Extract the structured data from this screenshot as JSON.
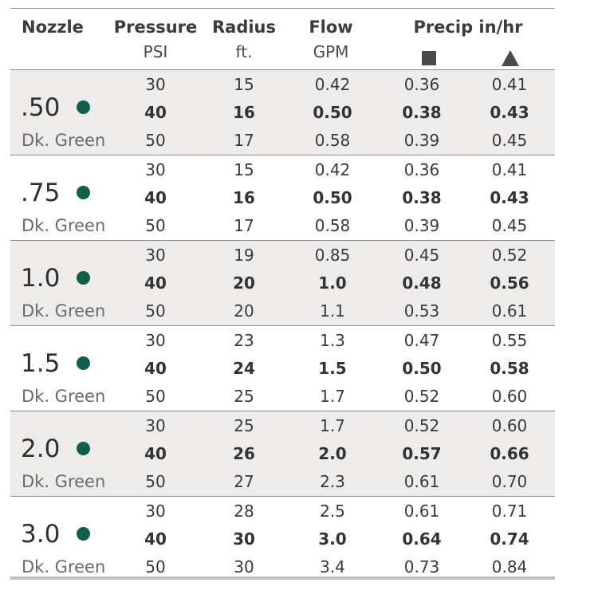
{
  "header": {
    "nozzle": "Nozzle",
    "pressure": "Pressure",
    "pressure_unit": "PSI",
    "radius": "Radius",
    "radius_unit": "ft.",
    "flow": "Flow",
    "flow_unit": "GPM",
    "precip": "Precip in/hr",
    "precip_square_icon": "square-icon",
    "precip_triangle_icon": "triangle-icon"
  },
  "colors": {
    "dot": "#0f5f4c",
    "shade": "#edecea"
  },
  "nozzles": [
    {
      "size": ".50",
      "color_name": "Dk. Green",
      "rows": [
        {
          "psi": "30",
          "radius": "15",
          "flow": "0.42",
          "sq": "0.36",
          "tri": "0.41"
        },
        {
          "psi": "40",
          "radius": "16",
          "flow": "0.50",
          "sq": "0.38",
          "tri": "0.43"
        },
        {
          "psi": "50",
          "radius": "17",
          "flow": "0.58",
          "sq": "0.39",
          "tri": "0.45"
        }
      ]
    },
    {
      "size": ".75",
      "color_name": "Dk. Green",
      "rows": [
        {
          "psi": "30",
          "radius": "15",
          "flow": "0.42",
          "sq": "0.36",
          "tri": "0.41"
        },
        {
          "psi": "40",
          "radius": "16",
          "flow": "0.50",
          "sq": "0.38",
          "tri": "0.43"
        },
        {
          "psi": "50",
          "radius": "17",
          "flow": "0.58",
          "sq": "0.39",
          "tri": "0.45"
        }
      ]
    },
    {
      "size": "1.0",
      "color_name": "Dk. Green",
      "rows": [
        {
          "psi": "30",
          "radius": "19",
          "flow": "0.85",
          "sq": "0.45",
          "tri": "0.52"
        },
        {
          "psi": "40",
          "radius": "20",
          "flow": "1.0",
          "sq": "0.48",
          "tri": "0.56"
        },
        {
          "psi": "50",
          "radius": "20",
          "flow": "1.1",
          "sq": "0.53",
          "tri": "0.61"
        }
      ]
    },
    {
      "size": "1.5",
      "color_name": "Dk. Green",
      "rows": [
        {
          "psi": "30",
          "radius": "23",
          "flow": "1.3",
          "sq": "0.47",
          "tri": "0.55"
        },
        {
          "psi": "40",
          "radius": "24",
          "flow": "1.5",
          "sq": "0.50",
          "tri": "0.58"
        },
        {
          "psi": "50",
          "radius": "25",
          "flow": "1.7",
          "sq": "0.52",
          "tri": "0.60"
        }
      ]
    },
    {
      "size": "2.0",
      "color_name": "Dk. Green",
      "rows": [
        {
          "psi": "30",
          "radius": "25",
          "flow": "1.7",
          "sq": "0.52",
          "tri": "0.60"
        },
        {
          "psi": "40",
          "radius": "26",
          "flow": "2.0",
          "sq": "0.57",
          "tri": "0.66"
        },
        {
          "psi": "50",
          "radius": "27",
          "flow": "2.3",
          "sq": "0.61",
          "tri": "0.70"
        }
      ]
    },
    {
      "size": "3.0",
      "color_name": "Dk. Green",
      "rows": [
        {
          "psi": "30",
          "radius": "28",
          "flow": "2.5",
          "sq": "0.61",
          "tri": "0.71"
        },
        {
          "psi": "40",
          "radius": "30",
          "flow": "3.0",
          "sq": "0.64",
          "tri": "0.74"
        },
        {
          "psi": "50",
          "radius": "30",
          "flow": "3.4",
          "sq": "0.73",
          "tri": "0.84"
        }
      ]
    }
  ]
}
